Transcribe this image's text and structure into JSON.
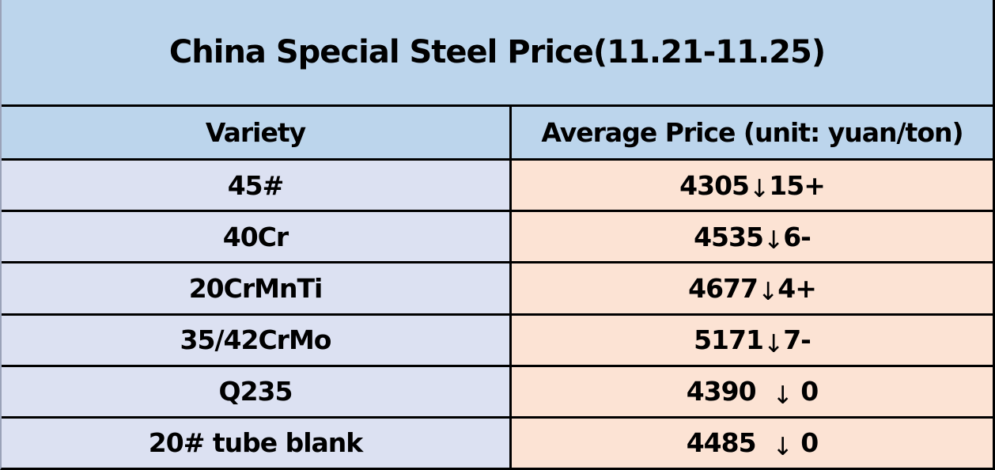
{
  "table": {
    "title": "China Special Steel Price(11.21-11.25)",
    "columns": [
      {
        "label": "Variety"
      },
      {
        "label": "Average Price (unit: yuan/ton)"
      }
    ],
    "rows": [
      {
        "variety": "45#",
        "price": "4305",
        "arrow": "↓",
        "change": "15+"
      },
      {
        "variety": "40Cr",
        "price": "4535",
        "arrow": "↓",
        "change": "6-"
      },
      {
        "variety": "20CrMnTi",
        "price": "4677",
        "arrow": "↓",
        "change": "4+"
      },
      {
        "variety": "35/42CrMo",
        "price": "5171",
        "arrow": "↓",
        "change": "7-"
      },
      {
        "variety": "Q235",
        "price": "4390  ",
        "arrow": "↓",
        "change": " 0"
      },
      {
        "variety": "20# tube blank",
        "price": "4485  ",
        "arrow": "↓",
        "change": " 0"
      }
    ]
  },
  "chart_data": {
    "type": "table",
    "title": "China Special Steel Price(11.21-11.25)",
    "columns": [
      "Variety",
      "Average Price (unit: yuan/ton)"
    ],
    "rows": [
      [
        "45#",
        "4305↓15+"
      ],
      [
        "40Cr",
        "4535↓6-"
      ],
      [
        "20CrMnTi",
        "4677↓4+"
      ],
      [
        "35/42CrMo",
        "5171↓7-"
      ],
      [
        "Q235",
        "4390 ↓ 0"
      ],
      [
        "20# tube blank",
        "4485 ↓ 0"
      ]
    ],
    "values": [
      4305,
      4535,
      4677,
      5171,
      4390,
      4485
    ],
    "changes": [
      -15,
      -6,
      -4,
      -7,
      0,
      0
    ]
  },
  "theme": {
    "header_bg": "#bcd5ec",
    "variety_bg": "#dce1f2",
    "price_bg": "#fce3d4",
    "grid_color": "#000000",
    "text_color": "#000000",
    "left_edge_color": "#9aa2b8"
  }
}
